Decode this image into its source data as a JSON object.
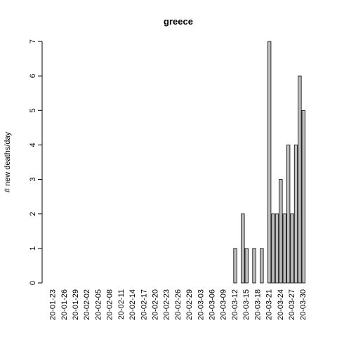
{
  "chart_data": {
    "type": "bar",
    "title": "greece",
    "y_label": "# new deaths/day",
    "categories": [
      "20-01-23",
      null,
      null,
      "20-01-26",
      null,
      null,
      "20-01-29",
      null,
      null,
      "20-02-02",
      null,
      null,
      "20-02-05",
      null,
      null,
      "20-02-08",
      null,
      null,
      "20-02-11",
      null,
      null,
      "20-02-14",
      null,
      null,
      "20-02-17",
      null,
      null,
      "20-02-20",
      null,
      null,
      "20-02-23",
      null,
      null,
      "20-02-26",
      null,
      null,
      "20-02-29",
      null,
      null,
      "20-03-03",
      null,
      null,
      "20-03-06",
      null,
      null,
      "20-03-09",
      null,
      null,
      "20-03-12",
      null,
      null,
      "20-03-15",
      null,
      null,
      "20-03-18",
      null,
      null,
      "20-03-21",
      null,
      null,
      "20-03-24",
      null,
      null,
      "20-03-27",
      null,
      null,
      "20-03-30"
    ],
    "values": [
      0,
      0,
      0,
      0,
      0,
      0,
      0,
      0,
      0,
      0,
      0,
      0,
      0,
      0,
      0,
      0,
      0,
      0,
      0,
      0,
      0,
      0,
      0,
      0,
      0,
      0,
      0,
      0,
      0,
      0,
      0,
      0,
      0,
      0,
      0,
      0,
      0,
      0,
      0,
      0,
      0,
      0,
      0,
      0,
      0,
      0,
      0,
      0,
      1,
      0,
      2,
      1,
      0,
      1,
      0,
      1,
      0,
      7,
      2,
      2,
      3,
      2,
      4,
      2,
      4,
      6,
      5
    ],
    "color": "#bebebe",
    "ylim": [
      0,
      7
    ],
    "yticks": [
      0,
      1,
      2,
      3,
      4,
      5,
      6,
      7
    ]
  }
}
